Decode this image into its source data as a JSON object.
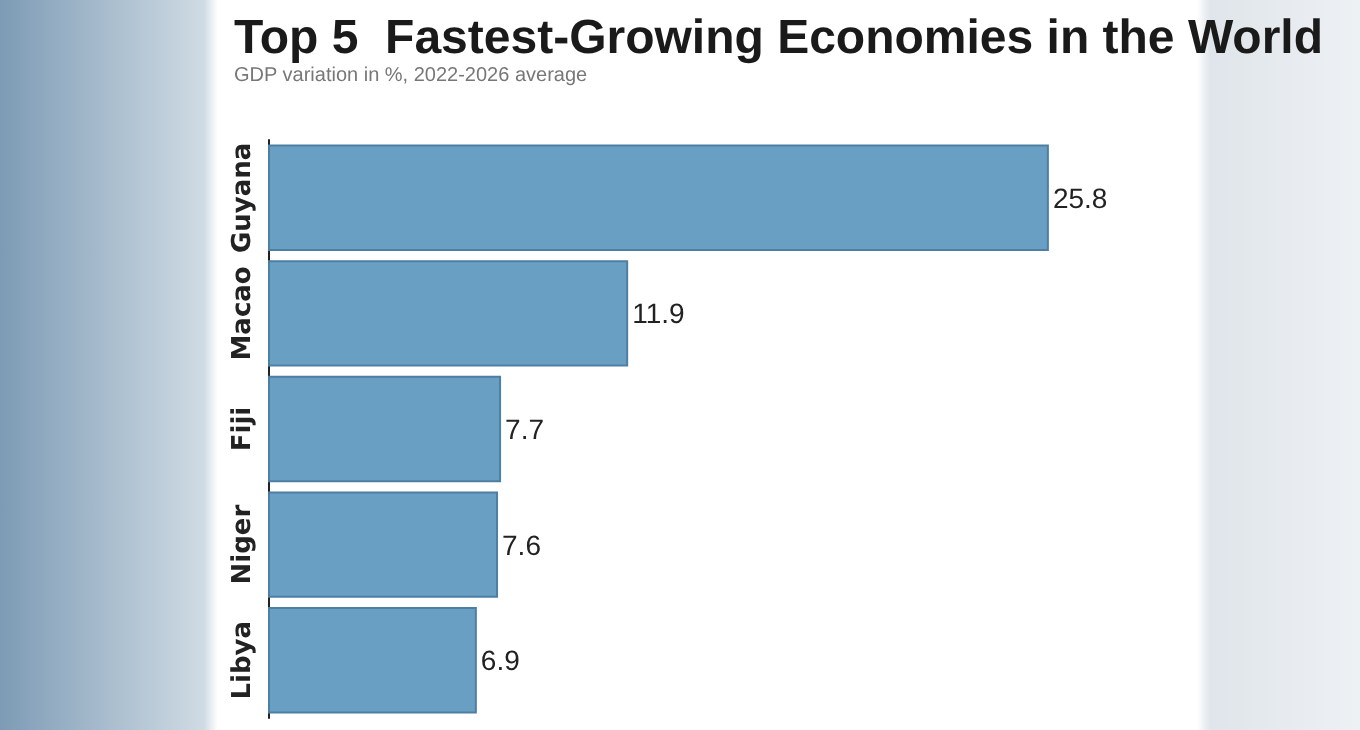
{
  "chart_data": {
    "type": "bar",
    "orientation": "horizontal",
    "title": "Top 5  Fastest-Growing Economies in the World",
    "subtitle": "GDP variation in %, 2022-2026 average",
    "categories": [
      "Guyana",
      "Macao",
      "Fiji",
      "Niger",
      "Libya"
    ],
    "values": [
      25.8,
      11.9,
      7.7,
      7.6,
      6.9
    ],
    "color": "#6a9fc4",
    "data_labels": true
  }
}
